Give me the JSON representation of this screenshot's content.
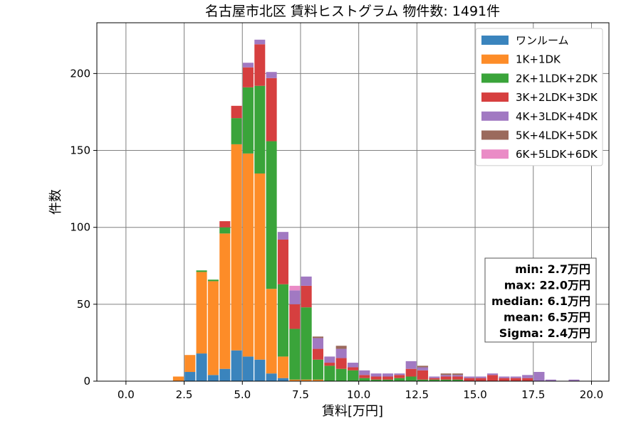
{
  "chart_data": {
    "type": "bar",
    "stacked": true,
    "title": "名古屋市北区 賃料ヒストグラム 物件数: 1491件",
    "xlabel": "賃料[万円]",
    "ylabel": "件数",
    "xlim": [
      -1.25,
      20.75
    ],
    "ylim": [
      0,
      233
    ],
    "xticks": [
      0.0,
      2.5,
      5.0,
      7.5,
      10.0,
      12.5,
      15.0,
      17.5,
      20.0
    ],
    "xtick_labels": [
      "0.0",
      "2.5",
      "5.0",
      "7.5",
      "10.0",
      "12.5",
      "15.0",
      "17.5",
      "20.0"
    ],
    "yticks": [
      0,
      50,
      100,
      150,
      200
    ],
    "ytick_labels": [
      "0",
      "50",
      "100",
      "150",
      "200"
    ],
    "grid": true,
    "legend_position": "top-right",
    "bin_width": 0.5,
    "bins": [
      2.25,
      2.75,
      3.25,
      3.75,
      4.25,
      4.75,
      5.25,
      5.75,
      6.25,
      6.75,
      7.25,
      7.75,
      8.25,
      8.75,
      9.25,
      9.75,
      10.25,
      10.75,
      11.25,
      11.75,
      12.25,
      12.75,
      13.25,
      13.75,
      14.25,
      14.75,
      15.25,
      15.75,
      16.25,
      16.75,
      17.25,
      17.75,
      18.25,
      18.75,
      19.25,
      19.75
    ],
    "series": [
      {
        "name": "ワンルーム",
        "color": "#3a84bd",
        "values": [
          0,
          6,
          18,
          4,
          8,
          20,
          16,
          14,
          5,
          2,
          0,
          0,
          0,
          0,
          0,
          0,
          0,
          0,
          0,
          0,
          0,
          0,
          0,
          0,
          0,
          0,
          0,
          0,
          0,
          0,
          0,
          0,
          0,
          0,
          0,
          0
        ]
      },
      {
        "name": "1K+1DK",
        "color": "#fd8c28",
        "values": [
          3,
          11,
          53,
          61,
          88,
          134,
          132,
          121,
          55,
          14,
          1,
          1,
          1,
          0,
          0,
          0,
          0,
          0,
          0,
          0,
          0,
          0,
          0,
          0,
          0,
          0,
          0,
          0,
          0,
          0,
          0,
          0,
          0,
          0,
          0,
          0
        ]
      },
      {
        "name": "2K+1LDK+2DK",
        "color": "#3aa43a",
        "values": [
          0,
          0,
          1,
          1,
          4,
          17,
          43,
          57,
          96,
          47,
          33,
          47,
          13,
          10,
          8,
          7,
          2,
          1,
          1,
          2,
          3,
          1,
          1,
          1,
          1,
          0,
          0,
          0,
          0,
          0,
          0,
          0,
          0,
          0,
          0,
          0
        ]
      },
      {
        "name": "3K+2LDK+3DK",
        "color": "#d63f3f",
        "values": [
          0,
          0,
          0,
          0,
          4,
          8,
          13,
          27,
          41,
          29,
          16,
          14,
          7,
          2,
          7,
          2,
          2,
          2,
          2,
          2,
          5,
          6,
          1,
          2,
          2,
          2,
          2,
          4,
          2,
          2,
          2,
          0,
          0,
          0,
          0,
          0
        ]
      },
      {
        "name": "4K+3LDK+4DK",
        "color": "#a179c2",
        "values": [
          0,
          0,
          0,
          0,
          0,
          0,
          3,
          3,
          4,
          5,
          9,
          6,
          7,
          4,
          6,
          3,
          3,
          2,
          2,
          1,
          5,
          2,
          1,
          1,
          1,
          1,
          1,
          1,
          1,
          1,
          2,
          6,
          1,
          0,
          1,
          0
        ]
      },
      {
        "name": "5K+4LDK+5DK",
        "color": "#9b6a5c",
        "values": [
          0,
          0,
          0,
          0,
          0,
          0,
          0,
          0,
          0,
          0,
          0,
          0,
          1,
          0,
          2,
          0,
          0,
          0,
          0,
          0,
          0,
          1,
          0,
          1,
          1,
          0,
          0,
          0,
          0,
          0,
          0,
          0,
          0,
          0,
          0,
          0
        ]
      },
      {
        "name": "6K+5LDK+6DK",
        "color": "#ea8bc6",
        "values": [
          0,
          0,
          0,
          0,
          0,
          0,
          0,
          0,
          0,
          0,
          3,
          0,
          0,
          0,
          0,
          0,
          0,
          0,
          0,
          0,
          0,
          0,
          0,
          0,
          0,
          0,
          0,
          0,
          0,
          0,
          0,
          0,
          0,
          0,
          0,
          0
        ]
      }
    ],
    "stats": [
      "min: 2.7万円",
      "max: 22.0万円",
      "median: 6.1万円",
      "mean: 6.5万円",
      "Sigma: 2.4万円"
    ]
  }
}
